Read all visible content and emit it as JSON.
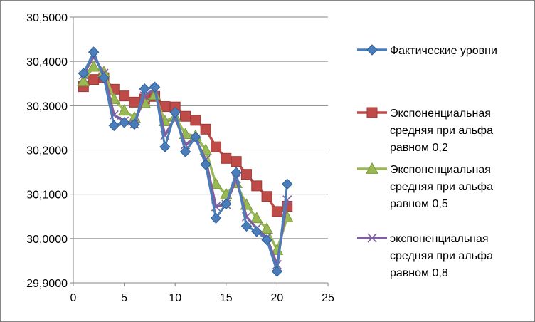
{
  "chart_data": {
    "type": "line",
    "title": "",
    "xlabel": "",
    "ylabel": "",
    "xlim": [
      0,
      25
    ],
    "ylim": [
      29.9,
      30.5
    ],
    "x_ticks": [
      "0",
      "5",
      "10",
      "15",
      "20",
      "25"
    ],
    "y_ticks": [
      "29,9000",
      "30,0000",
      "30,1000",
      "30,2000",
      "30,3000",
      "30,4000",
      "30,5000"
    ],
    "grid": "horizontal major",
    "legend_position": "right",
    "x": [
      1,
      2,
      3,
      4,
      5,
      6,
      7,
      8,
      9,
      10,
      11,
      12,
      13,
      14,
      15,
      16,
      17,
      18,
      19,
      20,
      21
    ],
    "series": [
      {
        "name": "Фактические уровни",
        "color": "#4a7ebb",
        "marker": "diamond",
        "values": [
          30.373,
          30.421,
          30.363,
          30.255,
          30.262,
          30.258,
          30.338,
          30.342,
          30.207,
          30.285,
          30.196,
          30.229,
          30.167,
          30.046,
          30.078,
          30.149,
          30.028,
          30.016,
          29.997,
          29.926,
          30.123
        ]
      },
      {
        "name": "Экспоненциальная средняя при альфа равном 0,2",
        "color": "#be4b48",
        "marker": "square",
        "values": [
          30.343,
          30.359,
          30.363,
          30.337,
          30.322,
          30.308,
          30.315,
          30.321,
          30.298,
          30.297,
          30.276,
          30.267,
          30.247,
          30.207,
          30.181,
          30.174,
          30.145,
          30.119,
          30.095,
          30.061,
          30.073
        ]
      },
      {
        "name": "Экспоненциальная средняя при альфа равном 0,5",
        "color": "#98b954",
        "marker": "triangle",
        "values": [
          30.355,
          30.388,
          30.376,
          30.315,
          30.289,
          30.273,
          30.306,
          30.324,
          30.265,
          30.275,
          30.236,
          30.232,
          30.2,
          30.123,
          30.1,
          30.125,
          30.076,
          30.046,
          30.022,
          29.974,
          30.048
        ]
      },
      {
        "name": "экспоненциальная средняя при альфа равном 0,8",
        "color": "#7d60a0",
        "marker": "x",
        "values": [
          30.37,
          30.411,
          30.373,
          30.279,
          30.265,
          30.259,
          30.322,
          30.338,
          30.233,
          30.274,
          30.212,
          30.225,
          30.178,
          30.072,
          30.077,
          30.135,
          30.049,
          30.023,
          30.002,
          29.941,
          30.087
        ]
      }
    ],
    "legend_lines": [
      [
        "Фактические уровни"
      ],
      [
        "Экспоненциальная",
        "средняя при альфа",
        "равном 0,2"
      ],
      [
        "Экспоненциальная",
        "средняя при альфа",
        "равном 0,5"
      ],
      [
        "экспоненциальная",
        "средняя при альфа",
        "равном 0,8"
      ]
    ]
  }
}
